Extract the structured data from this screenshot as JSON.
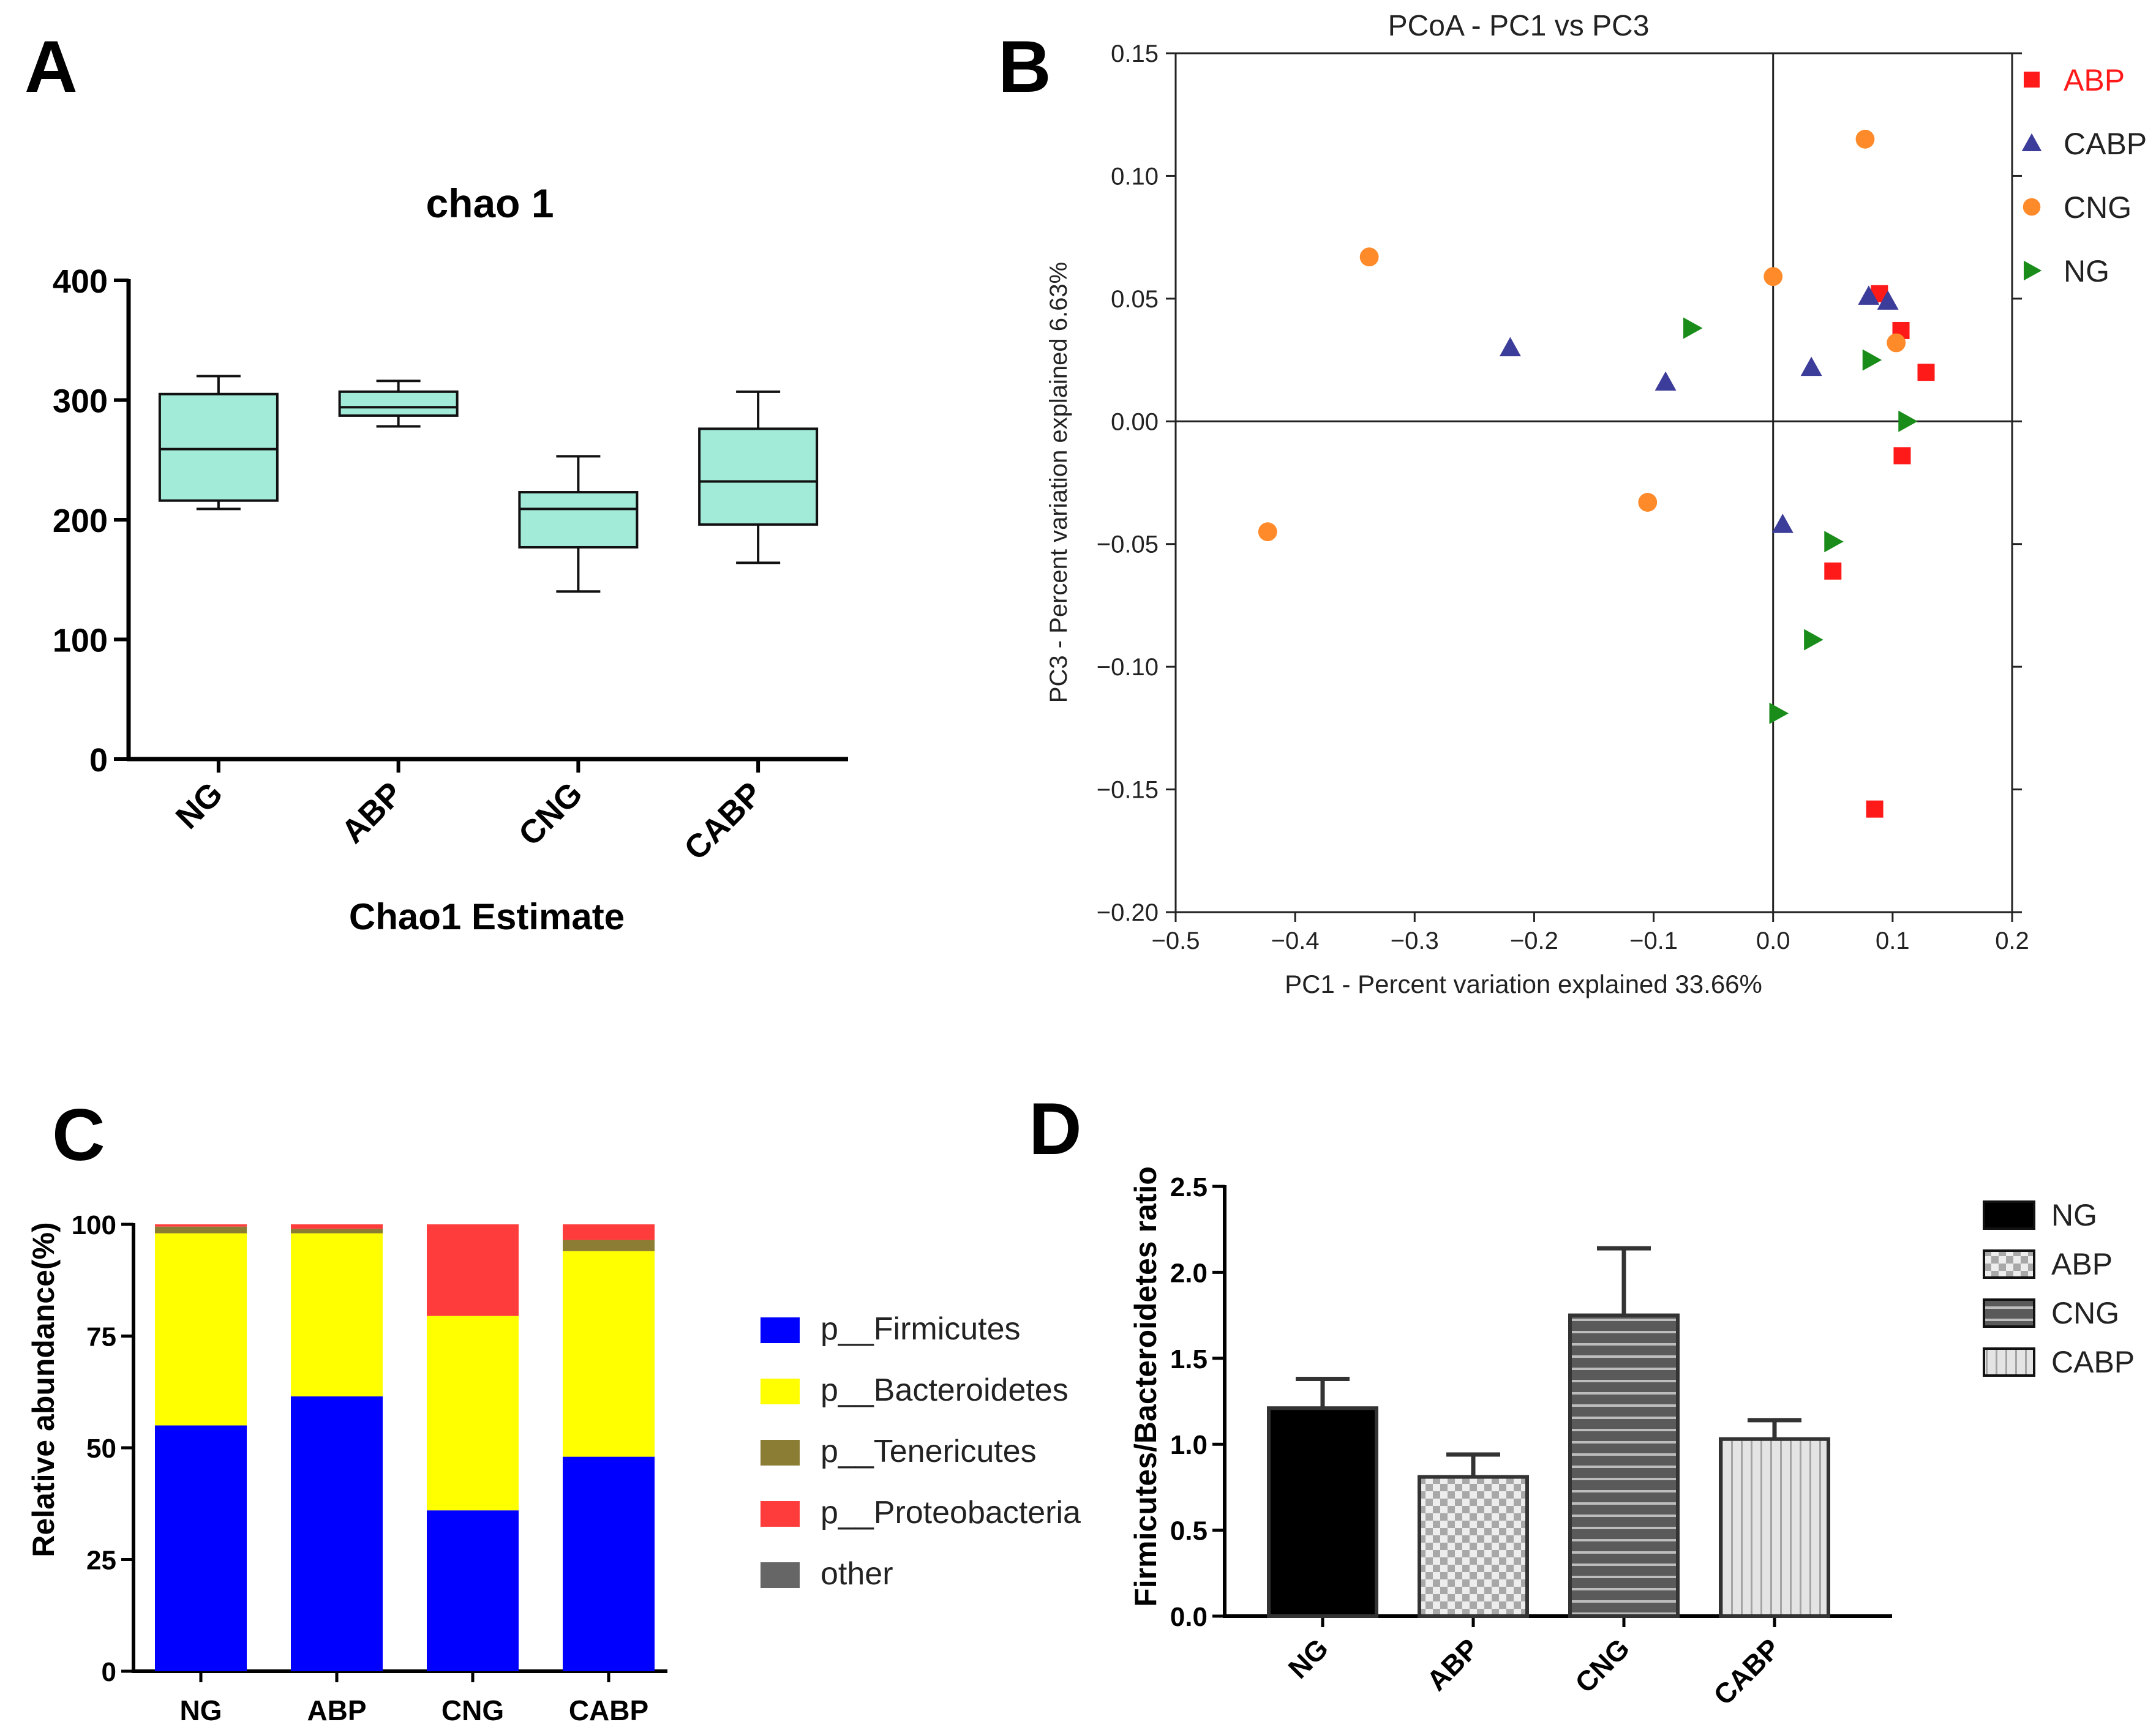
{
  "panels": {
    "a": "A",
    "b": "B",
    "c": "C",
    "d": "D"
  },
  "colors": {
    "box_fill": "#a2ebd9",
    "abp": "#ff1a1a",
    "cabp": "#3c3c9a",
    "cng": "#ff8a2a",
    "ng": "#1a8c1a",
    "firmicutes": "#0000ff",
    "bacteroidetes": "#ffff00",
    "tenericutes": "#8b7d33",
    "proteobacteria": "#ff3c3c",
    "other": "#666666"
  },
  "chart_data": [
    {
      "id": "A",
      "type": "box",
      "title": "chao 1",
      "xlabel": "Chao1 Estimate",
      "ylabel": "",
      "ylim": [
        0,
        400
      ],
      "yticks": [
        0,
        100,
        200,
        300,
        400
      ],
      "categories": [
        "NG",
        "ABP",
        "CNG",
        "CABP"
      ],
      "boxes": [
        {
          "min": 209,
          "q1": 216,
          "median": 259,
          "q3": 305,
          "max": 320
        },
        {
          "min": 278,
          "q1": 287,
          "median": 294,
          "q3": 307,
          "max": 316
        },
        {
          "min": 140,
          "q1": 177,
          "median": 209,
          "q3": 223,
          "max": 253
        },
        {
          "min": 164,
          "q1": 196,
          "median": 232,
          "q3": 276,
          "max": 307
        }
      ]
    },
    {
      "id": "B",
      "type": "scatter",
      "title": "PCoA - PC1 vs PC3",
      "xlabel": "PC1 - Percent variation explained 33.66%",
      "ylabel": "PC3 - Percent variation explained 6.63%",
      "xlim": [
        -0.5,
        0.2
      ],
      "ylim": [
        -0.2,
        0.15
      ],
      "xticks": [
        -0.5,
        -0.4,
        -0.3,
        -0.2,
        -0.1,
        0.0,
        0.1,
        0.2
      ],
      "xtick_labels": [
        "−0.5",
        "−0.4",
        "−0.3",
        "−0.2",
        "−0.1",
        "0.0",
        "0.1",
        "0.2"
      ],
      "yticks": [
        -0.2,
        -0.15,
        -0.1,
        -0.05,
        0.0,
        0.05,
        0.1,
        0.15
      ],
      "ytick_labels": [
        "−0.20",
        "−0.15",
        "−0.10",
        "−0.05",
        "0.00",
        "0.05",
        "0.10",
        "0.15"
      ],
      "legend_position": "right",
      "series": [
        {
          "name": "ABP",
          "marker": "square",
          "color": "#ff1a1a",
          "points": [
            [
              0.089,
              0.052
            ],
            [
              0.107,
              0.037
            ],
            [
              0.128,
              0.02
            ],
            [
              0.108,
              -0.014
            ],
            [
              0.05,
              -0.061
            ],
            [
              0.085,
              -0.158
            ]
          ]
        },
        {
          "name": "CABP",
          "marker": "triangle",
          "color": "#3c3c9a",
          "points": [
            [
              -0.22,
              0.03
            ],
            [
              -0.09,
              0.016
            ],
            [
              0.032,
              0.022
            ],
            [
              0.08,
              0.051
            ],
            [
              0.096,
              0.049
            ],
            [
              0.008,
              -0.042
            ]
          ]
        },
        {
          "name": "CNG",
          "marker": "circle",
          "color": "#ff8a2a",
          "points": [
            [
              -0.338,
              0.067
            ],
            [
              -0.423,
              -0.045
            ],
            [
              -0.105,
              -0.033
            ],
            [
              0.0,
              0.059
            ],
            [
              0.077,
              0.115
            ],
            [
              0.103,
              0.032
            ]
          ]
        },
        {
          "name": "NG",
          "marker": "triangle-right",
          "color": "#1a8c1a",
          "points": [
            [
              -0.068,
              0.038
            ],
            [
              0.082,
              0.025
            ],
            [
              0.112,
              0.0
            ],
            [
              0.05,
              -0.049
            ],
            [
              0.033,
              -0.089
            ],
            [
              0.004,
              -0.119
            ]
          ]
        }
      ]
    },
    {
      "id": "C",
      "type": "bar",
      "stacked": true,
      "ylabel": "Relative abundance(%)",
      "ylim": [
        0,
        100
      ],
      "yticks": [
        0,
        25,
        50,
        75,
        100
      ],
      "categories": [
        "NG",
        "ABP",
        "CNG",
        "CABP"
      ],
      "series": [
        {
          "name": "p__Firmicutes",
          "color": "#0000ff",
          "values": [
            55,
            61.5,
            36,
            48
          ]
        },
        {
          "name": "p__Bacteroidetes",
          "color": "#ffff00",
          "values": [
            43,
            36.5,
            43.5,
            46
          ]
        },
        {
          "name": "p__Tenericutes",
          "color": "#8b7d33",
          "values": [
            1.5,
            1,
            0,
            2.5
          ]
        },
        {
          "name": "p__Proteobacteria",
          "color": "#ff3c3c",
          "values": [
            0.5,
            1,
            20.5,
            3.5
          ]
        },
        {
          "name": "other",
          "color": "#666666",
          "values": [
            0,
            0,
            0,
            0
          ]
        }
      ]
    },
    {
      "id": "D",
      "type": "bar",
      "ylabel": "Firmicutes/Bacteroidetes ratio",
      "ylim": [
        0,
        2.5
      ],
      "yticks": [
        0.0,
        0.5,
        1.0,
        1.5,
        2.0,
        2.5
      ],
      "ytick_labels": [
        "0.0",
        "0.5",
        "1.0",
        "1.5",
        "2.0",
        "2.5"
      ],
      "categories": [
        "NG",
        "ABP",
        "CNG",
        "CABP"
      ],
      "values": [
        1.21,
        0.81,
        1.75,
        1.03
      ],
      "errors": [
        0.17,
        0.13,
        0.39,
        0.11
      ],
      "legend": [
        "NG",
        "ABP",
        "CNG",
        "CABP"
      ]
    }
  ]
}
